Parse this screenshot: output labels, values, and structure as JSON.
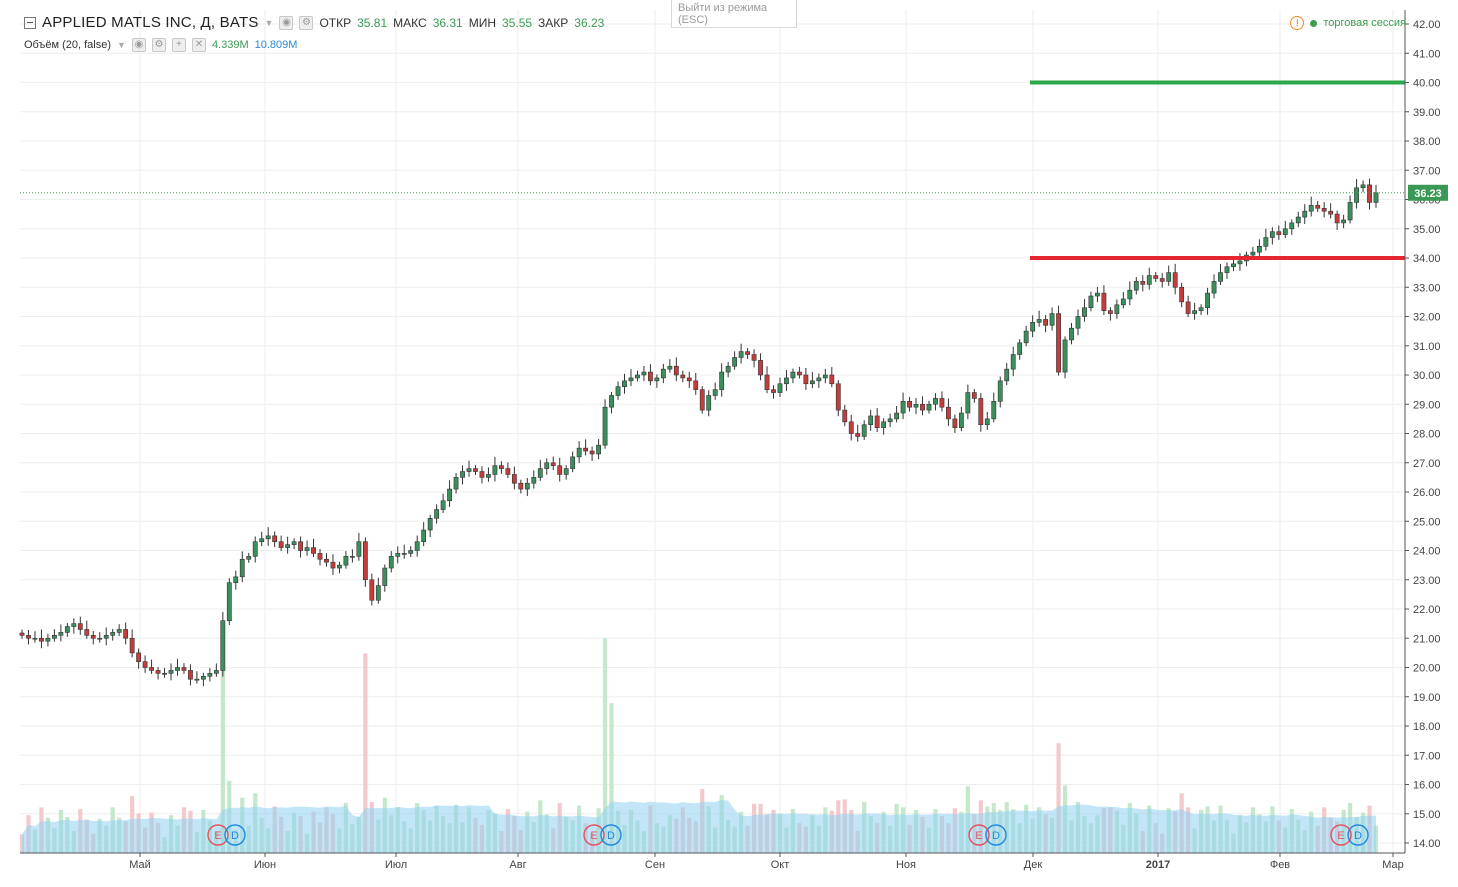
{
  "header": {
    "symbol": "APPLIED MATLS INC, Д, BATS",
    "open_label": "ОТКР",
    "open_value": "35.81",
    "high_label": "МАКС",
    "high_value": "36.31",
    "low_label": "МИН",
    "low_value": "35.55",
    "close_label": "ЗАКР",
    "close_value": "36.23",
    "volume_label": "Объём (20, false)",
    "volume_value": "4.339M",
    "volume_ma_value": "10.809M",
    "tooltip_text": "Выйти из режима (ESC)",
    "session_text": "торговая сессия"
  },
  "colors": {
    "up": "#3a8f5c",
    "down": "#c43d3d",
    "volume_up": "#bfe5c7",
    "volume_down": "#f2c4c6",
    "volume_ma": "#8fd1f0",
    "resistance": "#2aa84a",
    "support": "#e6262f",
    "price_tag": "#3a9a55"
  },
  "chart_data": {
    "type": "candlestick",
    "y_axis": {
      "min": 14.0,
      "max": 42.0,
      "step": 1.0,
      "position": "right",
      "ticks": [
        "42.00",
        "41.00",
        "40.00",
        "39.00",
        "38.00",
        "37.00",
        "36.00",
        "35.00",
        "34.00",
        "33.00",
        "32.00",
        "31.00",
        "30.00",
        "29.00",
        "28.00",
        "27.00",
        "26.00",
        "25.00",
        "24.00",
        "23.00",
        "22.00",
        "21.00",
        "20.00",
        "19.00",
        "18.00",
        "17.00",
        "16.00",
        "15.00",
        "14.00"
      ]
    },
    "x_axis": {
      "labels": [
        "Май",
        "Июн",
        "Июл",
        "Авг",
        "Сен",
        "Окт",
        "Ноя",
        "Дек",
        "2017",
        "Фев",
        "Мар"
      ]
    },
    "last_price": "36.23",
    "horizontal_lines": [
      {
        "name": "resistance",
        "value": 40.0,
        "from": "Дек",
        "to": "Мар"
      },
      {
        "name": "support",
        "value": 34.0,
        "from": "Дек",
        "to": "Мар"
      }
    ],
    "close_series": [
      21.1,
      21.0,
      21.0,
      20.9,
      21.0,
      21.1,
      21.2,
      21.4,
      21.5,
      21.3,
      21.1,
      21.0,
      21.0,
      21.1,
      21.2,
      21.3,
      21.0,
      20.5,
      20.2,
      20.0,
      19.9,
      19.8,
      19.8,
      19.9,
      20.0,
      19.9,
      19.6,
      19.6,
      19.7,
      19.8,
      19.9,
      21.6,
      22.9,
      23.1,
      23.7,
      23.8,
      24.3,
      24.4,
      24.5,
      24.3,
      24.1,
      24.2,
      24.3,
      24.0,
      24.1,
      23.9,
      23.7,
      23.6,
      23.4,
      23.5,
      23.8,
      23.8,
      24.3,
      23.0,
      22.3,
      22.8,
      23.4,
      23.8,
      23.9,
      23.9,
      24.0,
      24.3,
      24.7,
      25.1,
      25.4,
      25.7,
      26.1,
      26.5,
      26.7,
      26.8,
      26.7,
      26.5,
      26.6,
      26.9,
      26.8,
      26.6,
      26.3,
      26.1,
      26.3,
      26.5,
      26.8,
      27.0,
      26.9,
      26.6,
      26.8,
      27.2,
      27.5,
      27.4,
      27.3,
      27.6,
      28.9,
      29.3,
      29.6,
      29.8,
      29.9,
      30.0,
      30.1,
      29.8,
      29.9,
      30.2,
      30.3,
      30.0,
      29.9,
      29.8,
      29.5,
      28.8,
      29.3,
      29.5,
      30.1,
      30.3,
      30.6,
      30.8,
      30.7,
      30.5,
      30.0,
      29.5,
      29.4,
      29.7,
      29.9,
      30.1,
      30.0,
      29.7,
      29.8,
      29.9,
      30.0,
      29.7,
      28.8,
      28.4,
      28.0,
      27.9,
      28.3,
      28.6,
      28.2,
      28.4,
      28.5,
      28.7,
      29.1,
      28.9,
      29.0,
      28.8,
      29.0,
      29.2,
      28.9,
      28.5,
      28.2,
      28.7,
      29.4,
      29.2,
      28.3,
      28.5,
      29.1,
      29.8,
      30.2,
      30.7,
      31.1,
      31.5,
      31.8,
      31.9,
      31.7,
      32.1,
      30.1,
      31.2,
      31.6,
      32.0,
      32.3,
      32.7,
      32.8,
      32.2,
      32.1,
      32.4,
      32.6,
      32.9,
      33.2,
      33.1,
      33.4,
      33.3,
      33.2,
      33.5,
      33.0,
      32.5,
      32.1,
      32.2,
      32.3,
      32.8,
      33.2,
      33.5,
      33.7,
      33.8,
      33.9,
      34.1,
      34.2,
      34.4,
      34.7,
      34.9,
      34.8,
      35.0,
      35.2,
      35.4,
      35.6,
      35.8,
      35.7,
      35.6,
      35.5,
      35.2,
      35.3,
      35.9,
      36.4,
      36.5,
      35.9,
      36.23
    ]
  },
  "markers": [
    {
      "letters": [
        "E",
        "D"
      ],
      "near": "Май"
    },
    {
      "letters": [
        "E",
        "D"
      ],
      "near": "Авг"
    },
    {
      "letters": [
        "E",
        "D"
      ],
      "near": "Ноя"
    },
    {
      "letters": [
        "E",
        "D"
      ],
      "near": "Фев"
    }
  ]
}
